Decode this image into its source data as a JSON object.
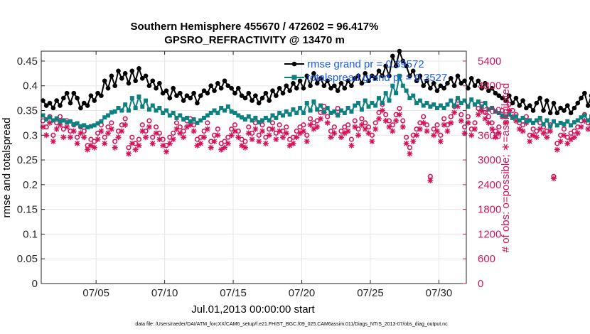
{
  "chart_data": {
    "type": "line",
    "title_line1": "Southern Hemisphere 455670 / 472602 = 96.417%",
    "title_line2": "GPSRO_REFRACTIVITY @ 13470 m",
    "xlabel": "Jul.01,2013 00:00:00 start",
    "ylabel_left": "rmse and totalspread",
    "ylabel_right": "# of obs: o=possible; ∗=assimilated",
    "footnote": "data file: /Users/raeder/DAI/ATM_forcXX/CAM6_setup/f.e21.FHIST_BGC.f09_025.CAM6assim.011/Diags_NTrS_2013-07/obs_diag_output.nc",
    "xlim": [
      1,
      32
    ],
    "xticks": [
      5,
      10,
      15,
      20,
      25,
      30
    ],
    "xtick_labels": [
      "07/05",
      "07/10",
      "07/15",
      "07/20",
      "07/25",
      "07/30"
    ],
    "ylim_left": [
      0,
      0.47
    ],
    "yticks_left": [
      0,
      0.05,
      0.1,
      0.15,
      0.2,
      0.25,
      0.3,
      0.35,
      0.4,
      0.45
    ],
    "ytick_labels_left": [
      "0",
      "0.05",
      "0.1",
      "0.15",
      "0.2",
      "0.25",
      "0.3",
      "0.35",
      "0.4",
      "0.45"
    ],
    "ylim_right": [
      0,
      5640
    ],
    "yticks_right": [
      0,
      600,
      1200,
      1800,
      2400,
      3000,
      3600,
      4200,
      4800,
      5400
    ],
    "ytick_labels_right": [
      "0",
      "600",
      "1200",
      "1800",
      "2400",
      "3000",
      "3600",
      "4200",
      "4800",
      "5400"
    ],
    "grid": true,
    "legend": {
      "placement": "top-right"
    },
    "colors": {
      "rmse": "#000000",
      "spread": "#0f8080",
      "obs": "#d4145a",
      "legend_text": "#1a5cf0"
    },
    "series": [
      {
        "name": "rmse grand pr = 0.39572",
        "axis": "left",
        "marker": "filled-circle",
        "x_start": 1.125,
        "x_step": 0.25,
        "values": [
          0.37,
          0.36,
          0.365,
          0.355,
          0.37,
          0.36,
          0.375,
          0.385,
          0.365,
          0.385,
          0.375,
          0.355,
          0.365,
          0.36,
          0.38,
          0.37,
          0.385,
          0.38,
          0.41,
          0.395,
          0.42,
          0.4,
          0.43,
          0.415,
          0.425,
          0.405,
          0.43,
          0.41,
          0.435,
          0.415,
          0.42,
          0.4,
          0.41,
          0.395,
          0.405,
          0.385,
          0.39,
          0.375,
          0.395,
          0.38,
          0.385,
          0.37,
          0.38,
          0.375,
          0.385,
          0.365,
          0.38,
          0.39,
          0.385,
          0.4,
          0.39,
          0.405,
          0.395,
          0.41,
          0.4,
          0.395,
          0.385,
          0.395,
          0.38,
          0.375,
          0.385,
          0.37,
          0.38,
          0.365,
          0.375,
          0.385,
          0.37,
          0.39,
          0.38,
          0.395,
          0.385,
          0.4,
          0.39,
          0.405,
          0.395,
          0.41,
          0.395,
          0.42,
          0.4,
          0.425,
          0.405,
          0.415,
          0.4,
          0.41,
          0.395,
          0.4,
          0.39,
          0.405,
          0.395,
          0.41,
          0.4,
          0.415,
          0.42,
          0.405,
          0.425,
          0.41,
          0.42,
          0.415,
          0.43,
          0.42,
          0.44,
          0.42,
          0.46,
          0.44,
          0.47,
          0.45,
          0.44,
          0.42,
          0.43,
          0.41,
          0.42,
          0.4,
          0.41,
          0.395,
          0.405,
          0.39,
          0.4,
          0.395,
          0.405,
          0.415,
          0.4,
          0.42,
          0.405,
          0.41,
          0.395,
          0.415,
          0.4,
          0.41,
          0.395,
          0.405,
          0.39,
          0.395,
          0.385,
          0.38,
          0.375,
          0.37,
          0.38,
          0.365,
          0.375,
          0.36,
          0.37,
          0.355,
          0.36,
          0.35,
          0.365,
          0.375,
          0.35,
          0.37,
          0.345,
          0.365,
          0.345,
          0.355,
          0.35,
          0.36,
          0.345,
          0.355,
          0.365,
          0.375,
          0.385,
          0.36,
          0.38,
          0.37
        ]
      },
      {
        "name": "totalspread grand pr = 0.3527",
        "axis": "left",
        "marker": "filled-square",
        "x_start": 1.125,
        "x_step": 0.25,
        "values": [
          0.34,
          0.332,
          0.336,
          0.33,
          0.334,
          0.328,
          0.33,
          0.326,
          0.328,
          0.322,
          0.324,
          0.318,
          0.32,
          0.316,
          0.318,
          0.32,
          0.324,
          0.328,
          0.336,
          0.34,
          0.346,
          0.348,
          0.355,
          0.35,
          0.362,
          0.35,
          0.375,
          0.355,
          0.378,
          0.358,
          0.37,
          0.352,
          0.36,
          0.35,
          0.355,
          0.345,
          0.35,
          0.34,
          0.345,
          0.335,
          0.34,
          0.332,
          0.335,
          0.328,
          0.332,
          0.325,
          0.33,
          0.335,
          0.34,
          0.345,
          0.35,
          0.345,
          0.355,
          0.35,
          0.358,
          0.348,
          0.345,
          0.34,
          0.336,
          0.332,
          0.338,
          0.33,
          0.335,
          0.326,
          0.33,
          0.335,
          0.33,
          0.34,
          0.335,
          0.345,
          0.34,
          0.348,
          0.342,
          0.352,
          0.345,
          0.355,
          0.345,
          0.365,
          0.35,
          0.368,
          0.352,
          0.36,
          0.348,
          0.355,
          0.345,
          0.348,
          0.34,
          0.35,
          0.345,
          0.355,
          0.348,
          0.36,
          0.365,
          0.352,
          0.37,
          0.358,
          0.365,
          0.36,
          0.375,
          0.365,
          0.385,
          0.37,
          0.4,
          0.385,
          0.42,
          0.4,
          0.39,
          0.375,
          0.38,
          0.365,
          0.37,
          0.36,
          0.365,
          0.358,
          0.362,
          0.355,
          0.36,
          0.355,
          0.362,
          0.37,
          0.36,
          0.375,
          0.365,
          0.37,
          0.358,
          0.372,
          0.362,
          0.368,
          0.358,
          0.365,
          0.352,
          0.355,
          0.348,
          0.345,
          0.34,
          0.338,
          0.342,
          0.335,
          0.338,
          0.33,
          0.335,
          0.328,
          0.33,
          0.325,
          0.33,
          0.335,
          0.322,
          0.33,
          0.318,
          0.328,
          0.32,
          0.325,
          0.322,
          0.328,
          0.32,
          0.326,
          0.33,
          0.336,
          0.34,
          0.33,
          0.338,
          0.334
        ]
      },
      {
        "name": "possible",
        "axis": "right",
        "marker": "open-circle",
        "x_start": 1.125,
        "x_step": 0.25,
        "values": [
          3950,
          3800,
          4050,
          3600,
          3900,
          4050,
          3750,
          3950,
          3700,
          3850,
          3550,
          3800,
          3700,
          3350,
          3500,
          3450,
          3650,
          3850,
          3550,
          3800,
          3900,
          3450,
          3700,
          3850,
          4000,
          3300,
          3550,
          3400,
          3500,
          3850,
          3700,
          3950,
          3550,
          3800,
          3650,
          3500,
          3350,
          3550,
          3650,
          3900,
          3800,
          3700,
          3950,
          4000,
          3850,
          3500,
          3550,
          3700,
          3900,
          3450,
          3600,
          3750,
          3400,
          3450,
          3550,
          3750,
          3850,
          3700,
          3500,
          3450,
          3800,
          3650,
          3900,
          3600,
          3850,
          3550,
          3750,
          3900,
          3650,
          3850,
          3700,
          3800,
          3500,
          3550,
          3700,
          3800,
          3850,
          3600,
          4000,
          3900,
          3950,
          4150,
          4300,
          4050,
          3700,
          3800,
          4250,
          3700,
          3800,
          3850,
          3500,
          3950,
          3750,
          4000,
          3900,
          3800,
          3600,
          3900,
          4150,
          4350,
          4100,
          3950,
          3850,
          4100,
          4250,
          3950,
          3550,
          3300,
          3600,
          3750,
          3900,
          4050,
          3850,
          2600,
          3750,
          3850,
          3600,
          4000,
          3850,
          4050,
          4300,
          4450,
          4100,
          3800,
          4050,
          3750,
          3900,
          4250,
          4350,
          4150,
          4050,
          3900,
          3700,
          3800,
          4200,
          4050,
          4350,
          4200,
          4100,
          3900,
          3850,
          4050,
          3600,
          3750,
          3700,
          3900,
          3800,
          3700,
          3850,
          2600,
          3400,
          3600,
          3750,
          3550,
          3650,
          3700,
          3800,
          3950,
          4100,
          3900,
          4000,
          4200
        ]
      },
      {
        "name": "assimilated",
        "axis": "right",
        "marker": "asterisk",
        "x_start": 1.125,
        "x_step": 0.25,
        "values": [
          3800,
          3600,
          3900,
          3450,
          3750,
          3850,
          3550,
          3800,
          3550,
          3700,
          3400,
          3650,
          3550,
          3250,
          3350,
          3300,
          3500,
          3700,
          3400,
          3650,
          3750,
          3300,
          3550,
          3700,
          3850,
          3150,
          3400,
          3250,
          3350,
          3700,
          3550,
          3800,
          3400,
          3650,
          3500,
          3350,
          3200,
          3400,
          3500,
          3750,
          3650,
          3550,
          3800,
          3850,
          3700,
          3350,
          3400,
          3550,
          3750,
          3300,
          3450,
          3600,
          3250,
          3300,
          3400,
          3600,
          3700,
          3550,
          3350,
          3300,
          3650,
          3500,
          3750,
          3450,
          3700,
          3400,
          3600,
          3750,
          3500,
          3700,
          3550,
          3650,
          3350,
          3400,
          3550,
          3650,
          3700,
          3450,
          3850,
          3750,
          3800,
          4000,
          4150,
          3900,
          3550,
          3650,
          4100,
          3550,
          3650,
          3700,
          3350,
          3800,
          3600,
          3850,
          3750,
          3650,
          3450,
          3750,
          4000,
          4200,
          3950,
          3800,
          3700,
          3950,
          4100,
          3800,
          3400,
          3150,
          3450,
          3600,
          3750,
          3900,
          3700,
          2500,
          3600,
          3700,
          3450,
          3850,
          3700,
          3900,
          4150,
          4300,
          3950,
          3650,
          3900,
          3600,
          3750,
          4100,
          4200,
          4000,
          3900,
          3750,
          3550,
          3650,
          4050,
          3900,
          4200,
          4050,
          3950,
          3750,
          3700,
          3900,
          3450,
          3600,
          3550,
          3750,
          3650,
          3550,
          3700,
          2550,
          3250,
          3450,
          3600,
          3400,
          3500,
          3550,
          3650,
          3800,
          3950,
          3750,
          3850,
          4050
        ]
      }
    ]
  }
}
